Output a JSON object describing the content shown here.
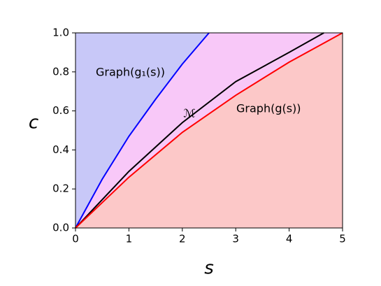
{
  "chart_data": {
    "type": "line",
    "xlabel": "s",
    "ylabel": "c",
    "xlim": [
      0,
      5
    ],
    "ylim": [
      0,
      1
    ],
    "xticks": [
      0,
      1,
      2,
      3,
      4,
      5
    ],
    "yticks": [
      {
        "value": 0,
        "label": "0.0"
      },
      {
        "value": 0.2,
        "label": "0.2"
      },
      {
        "value": 0.4,
        "label": "0.4"
      },
      {
        "value": 0.6,
        "label": "0.6"
      },
      {
        "value": 0.8,
        "label": "0.8"
      },
      {
        "value": 1,
        "label": "1.0"
      }
    ],
    "series": [
      {
        "name": "Graph(g₁(s))",
        "color": "#0000ff",
        "fill": "#c8c8f8",
        "x": [
          0,
          0.5,
          1,
          1.5,
          2,
          2.5
        ],
        "values": [
          0,
          0.25,
          0.47,
          0.66,
          0.84,
          1.0
        ]
      },
      {
        "name": "ℳ",
        "color": "#000000",
        "x": [
          0,
          1,
          2,
          3,
          4,
          4.65
        ],
        "values": [
          0,
          0.29,
          0.54,
          0.75,
          0.9,
          1.0
        ]
      },
      {
        "name": "Graph(g(s))",
        "color": "#ff0000",
        "fill": "#fcc8c8",
        "x": [
          0,
          1,
          2,
          3,
          4,
          5
        ],
        "values": [
          0,
          0.26,
          0.49,
          0.68,
          0.85,
          1.0
        ]
      }
    ],
    "between_fill": "#f8c8f8"
  }
}
